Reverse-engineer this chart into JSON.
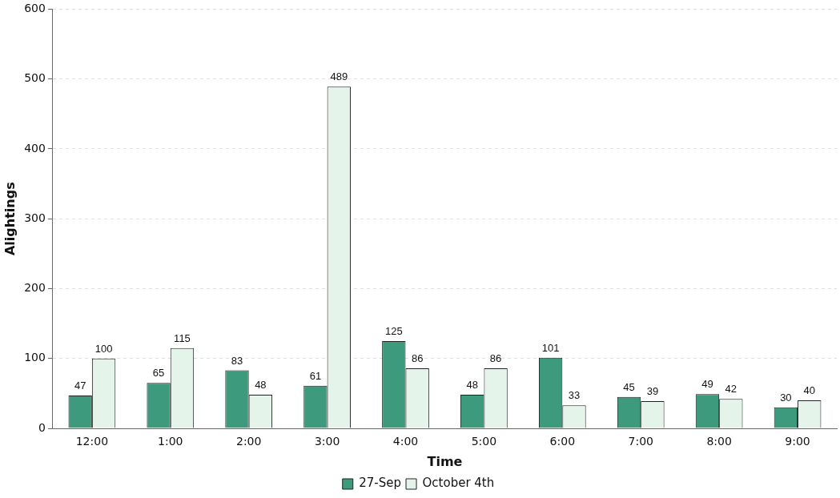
{
  "chart_data": {
    "type": "bar",
    "xlabel": "Time",
    "ylabel": "Alightings",
    "categories": [
      "12:00",
      "1:00",
      "2:00",
      "3:00",
      "4:00",
      "5:00",
      "6:00",
      "7:00",
      "8:00",
      "9:00"
    ],
    "series": [
      {
        "name": "27-Sep",
        "color": "#3d9a7c",
        "values": [
          47,
          65,
          83,
          61,
          125,
          48,
          101,
          45,
          49,
          30
        ]
      },
      {
        "name": "October 4th",
        "color": "#e4f4ea",
        "values": [
          100,
          115,
          48,
          489,
          86,
          86,
          33,
          39,
          42,
          40
        ]
      }
    ],
    "ylim": [
      0,
      600
    ],
    "yticks": [
      0,
      100,
      200,
      300,
      400,
      500,
      600
    ],
    "grid": "y",
    "legend": "bottom",
    "data_labels": true
  }
}
